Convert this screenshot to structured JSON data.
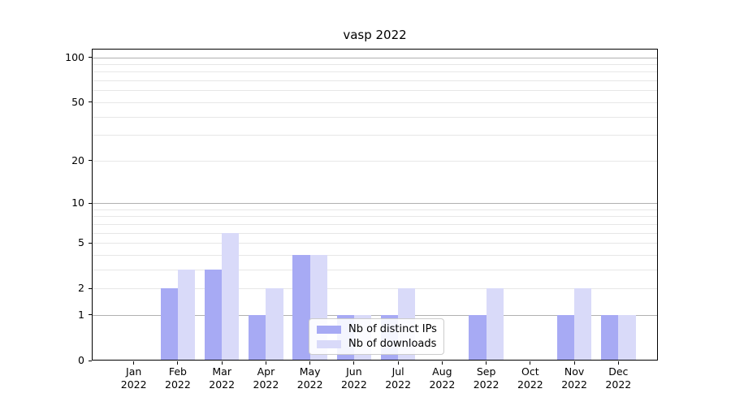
{
  "chart_data": {
    "type": "bar",
    "title": "vasp 2022",
    "x_tick_labels": [
      [
        "Jan",
        "2022"
      ],
      [
        "Feb",
        "2022"
      ],
      [
        "Mar",
        "2022"
      ],
      [
        "Apr",
        "2022"
      ],
      [
        "May",
        "2022"
      ],
      [
        "Jun",
        "2022"
      ],
      [
        "Jul",
        "2022"
      ],
      [
        "Aug",
        "2022"
      ],
      [
        "Sep",
        "2022"
      ],
      [
        "Oct",
        "2022"
      ],
      [
        "Nov",
        "2022"
      ],
      [
        "Dec",
        "2022"
      ]
    ],
    "series": [
      {
        "name": "Nb of distinct IPs",
        "color": "#a7aaf4",
        "values": [
          0,
          2,
          3,
          1,
          4,
          1,
          1,
          0,
          1,
          0,
          1,
          1
        ]
      },
      {
        "name": "Nb of downloads",
        "color": "#d9daf9",
        "values": [
          0,
          3,
          6,
          2,
          4,
          1,
          2,
          0,
          2,
          0,
          2,
          1
        ]
      }
    ],
    "y_axis": {
      "scale": "log1p",
      "tick_values": [
        0,
        1,
        2,
        5,
        10,
        20,
        50,
        100
      ],
      "tick_labels": [
        "0",
        "1",
        "2",
        "5",
        "10",
        "20",
        "50",
        "100"
      ],
      "major_grid_values": [
        1,
        10,
        100
      ],
      "minor_grid_values": [
        2,
        3,
        4,
        5,
        6,
        7,
        8,
        9,
        20,
        30,
        40,
        50,
        60,
        70,
        80,
        90
      ],
      "range_max": 115
    },
    "legend": {
      "position": "lower-center-inside",
      "entries": [
        "Nb of distinct IPs",
        "Nb of downloads"
      ]
    },
    "grid": true,
    "colors": {
      "bar_dark": "#a7aaf4",
      "bar_light": "#d9daf9",
      "major_grid": "#b0b0b0",
      "minor_grid": "#e7e7e7",
      "axis": "#000000",
      "background": "#ffffff"
    }
  }
}
